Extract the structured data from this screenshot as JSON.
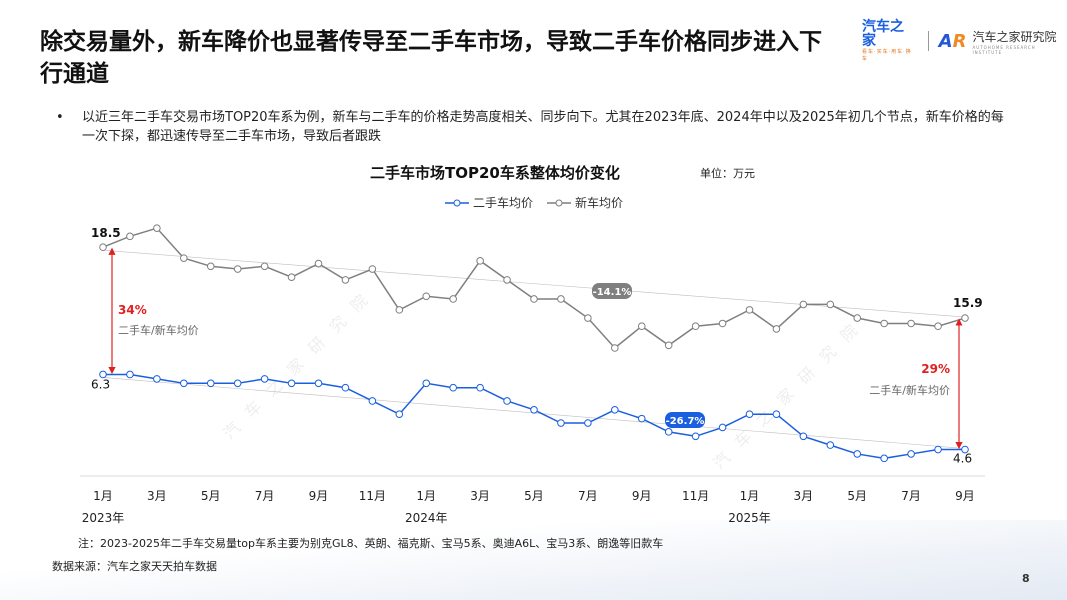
{
  "header": {
    "title": "除交易量外，新车降价也显著传导至二手车市场，导致二手车价格同步进入下行通道",
    "logo": {
      "brand": "汽车之家",
      "brand_sub": "看车·买车·用车·换车",
      "institute": "汽车之家研究院",
      "institute_en": "AUTOHOME RESEARCH INSTITUTE"
    }
  },
  "bullet": "以近三年二手车交易市场TOP20车系为例，新车与二手车的价格走势高度相关、同步向下。尤其在2023年底、2024年中以及2025年初几个节点，新车价格的每一次下探，都迅速传导至二手车市场，导致后者跟跌",
  "chart_data": {
    "type": "line",
    "title": "二手车市场TOP20车系整体均价变化",
    "unit": "单位：万元",
    "x": [
      "2023-01",
      "2023-02",
      "2023-03",
      "2023-04",
      "2023-05",
      "2023-06",
      "2023-07",
      "2023-08",
      "2023-09",
      "2023-10",
      "2023-11",
      "2023-12",
      "2024-01",
      "2024-02",
      "2024-03",
      "2024-04",
      "2024-05",
      "2024-06",
      "2024-07",
      "2024-08",
      "2024-09",
      "2024-10",
      "2024-11",
      "2024-12",
      "2025-01",
      "2025-02",
      "2025-03",
      "2025-04",
      "2025-05",
      "2025-06",
      "2025-07",
      "2025-08",
      "2025-09"
    ],
    "tick_labels": [
      "1月",
      "3月",
      "5月",
      "7月",
      "9月",
      "11月",
      "1月",
      "3月",
      "5月",
      "7月",
      "9月",
      "11月",
      "1月",
      "3月",
      "5月",
      "7月",
      "9月"
    ],
    "year_labels": [
      "2023年",
      "2024年",
      "2025年"
    ],
    "legend_position": "top",
    "grid": false,
    "series": [
      {
        "name": "二手车均价",
        "color": "#1a5fe0",
        "axis": "secondary",
        "ylim": [
          4.0,
          9.8
        ],
        "values": [
          6.3,
          6.3,
          6.2,
          6.1,
          6.1,
          6.1,
          6.2,
          6.1,
          6.1,
          6.0,
          5.7,
          5.4,
          6.1,
          6.0,
          6.0,
          5.7,
          5.5,
          5.2,
          5.2,
          5.5,
          5.3,
          5.0,
          4.9,
          5.1,
          5.4,
          5.4,
          4.9,
          4.7,
          4.5,
          4.4,
          4.5,
          4.6,
          4.6
        ],
        "start_label": "6.3",
        "end_label": "4.6",
        "trend_label": "-26.7%"
      },
      {
        "name": "新车均价",
        "color": "#7f7f7f",
        "axis": "primary",
        "ylim": [
          10.1,
          19.5
        ],
        "values": [
          18.5,
          18.9,
          19.2,
          18.1,
          17.8,
          17.7,
          17.8,
          17.4,
          17.9,
          17.3,
          17.7,
          16.2,
          16.7,
          16.6,
          18.0,
          17.3,
          16.6,
          16.6,
          15.9,
          14.8,
          15.6,
          14.9,
          15.6,
          15.7,
          16.2,
          15.5,
          16.4,
          16.4,
          15.9,
          15.7,
          15.7,
          15.6,
          15.9
        ],
        "start_label": "18.5",
        "end_label": "15.9",
        "trend_label": "-14.1%"
      }
    ],
    "annotations": [
      {
        "ratio": "34%",
        "text": "二手车/新车均价",
        "at": "2023-01"
      },
      {
        "ratio": "29%",
        "text": "二手车/新车均价",
        "at": "2025-09"
      }
    ],
    "accent_color": "#e02020",
    "watermark": "汽车之家研究院"
  },
  "footer": {
    "note": "注：2023-2025年二手车交易量top车系主要为别克GL8、英朗、福克斯、宝马5系、奥迪A6L、宝马3系、朗逸等旧款车",
    "source": "数据来源：汽车之家天天拍车数据",
    "page": "8"
  }
}
